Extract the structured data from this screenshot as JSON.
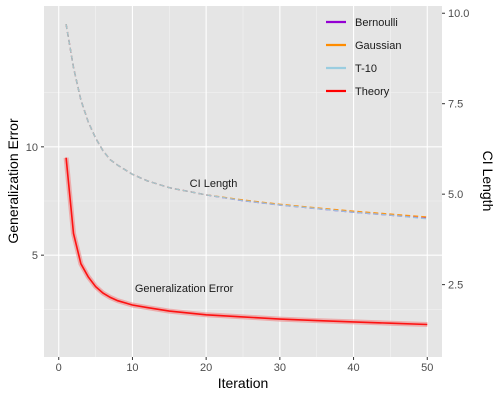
{
  "chart_data": {
    "type": "line",
    "xlabel": "Iteration",
    "ylabel_left": "Generalization Error",
    "ylabel_right": "CI Length",
    "xlim": [
      -2,
      52
    ],
    "ylim_left": [
      0.3,
      16.5
    ],
    "ylim_right": [
      0.5,
      10.2
    ],
    "x_ticks": [
      0,
      10,
      20,
      30,
      40,
      50
    ],
    "y_left_ticks": [
      5,
      10
    ],
    "y_right_ticks": [
      2.5,
      5.0,
      7.5,
      10.0
    ],
    "y_right_tick_labels": [
      "2.5",
      "5.0",
      "7.5",
      "10.0"
    ],
    "grid": true,
    "legend_position": "top-right",
    "annotations": [
      {
        "text": "CI Length",
        "x": 21,
        "y_right": 5.2
      },
      {
        "text": "Generalization Error",
        "x": 17,
        "y_left": 3.3
      }
    ],
    "series": [
      {
        "name": "Bernoulli",
        "color": "#9400D3",
        "axis": "right",
        "style": "dashed",
        "x": [
          1,
          2,
          3,
          4,
          5,
          6,
          7,
          8,
          10,
          12,
          15,
          20,
          25,
          30,
          35,
          40,
          45,
          50
        ],
        "y": [
          9.7,
          8.5,
          7.6,
          7.0,
          6.55,
          6.2,
          5.95,
          5.8,
          5.55,
          5.37,
          5.18,
          4.98,
          4.82,
          4.7,
          4.6,
          4.5,
          4.42,
          4.33
        ]
      },
      {
        "name": "Gaussian",
        "color": "#FF8C00",
        "axis": "right",
        "style": "dashed",
        "x": [
          1,
          2,
          3,
          4,
          5,
          6,
          7,
          8,
          10,
          12,
          15,
          20,
          25,
          30,
          35,
          40,
          45,
          50
        ],
        "y": [
          9.7,
          8.5,
          7.6,
          7.0,
          6.55,
          6.2,
          5.95,
          5.8,
          5.55,
          5.37,
          5.18,
          4.98,
          4.84,
          4.72,
          4.62,
          4.53,
          4.45,
          4.37
        ]
      },
      {
        "name": "T-10",
        "color": "#9ACDE0",
        "axis": "right",
        "style": "dashed",
        "x": [
          1,
          2,
          3,
          4,
          5,
          6,
          7,
          8,
          10,
          12,
          15,
          20,
          25,
          30,
          35,
          40,
          45,
          50
        ],
        "y": [
          9.7,
          8.5,
          7.6,
          7.0,
          6.55,
          6.2,
          5.95,
          5.8,
          5.55,
          5.37,
          5.18,
          4.98,
          4.82,
          4.7,
          4.6,
          4.5,
          4.42,
          4.32
        ]
      },
      {
        "name": "Theory",
        "color": "#FF0000",
        "axis": "left",
        "style": "solid",
        "x": [
          1,
          2,
          3,
          4,
          5,
          6,
          7,
          8,
          10,
          12,
          15,
          20,
          25,
          30,
          35,
          40,
          45,
          50
        ],
        "y": [
          9.5,
          6.0,
          4.6,
          4.0,
          3.55,
          3.25,
          3.05,
          2.9,
          2.7,
          2.58,
          2.42,
          2.25,
          2.15,
          2.05,
          1.98,
          1.92,
          1.86,
          1.8
        ]
      }
    ]
  }
}
